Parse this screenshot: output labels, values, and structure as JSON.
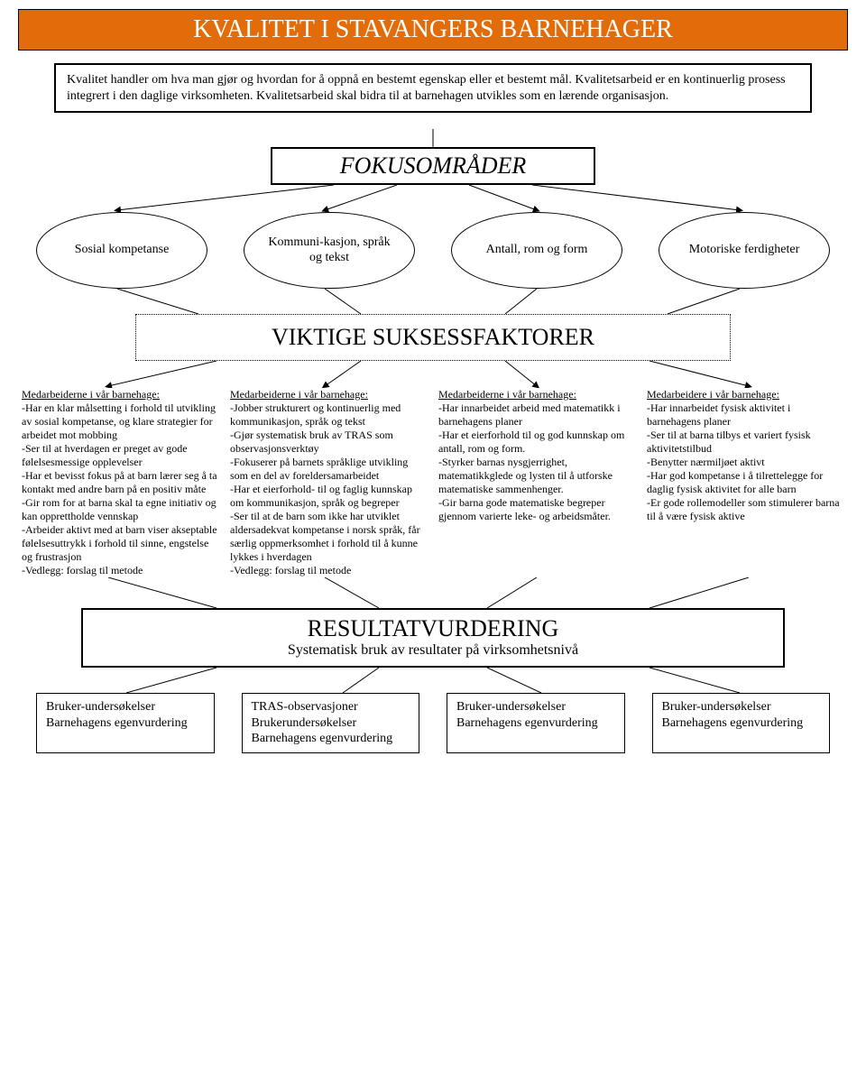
{
  "title": "KVALITET I STAVANGERS BARNEHAGER",
  "intro": "Kvalitet handler om hva man gjør og hvordan for å oppnå en bestemt egenskap eller et bestemt mål. Kvalitetsarbeid er en kontinuerlig prosess integrert i den daglige virksomheten. Kvalitetsarbeid skal bidra til at barnehagen utvikles som en lærende organisasjon.",
  "fokus_title": "FOKUSOMRÅDER",
  "ellipses": [
    "Sosial kompetanse",
    "Kommuni-kasjon, språk og tekst",
    "Antall, rom og form",
    "Motoriske ferdigheter"
  ],
  "viktige_title": "VIKTIGE SUKSESSFAKTORER",
  "columns": [
    {
      "head": "Medarbeiderne i vår barnehage:",
      "body": "-Har en klar målsetting i forhold til utvikling av sosial kompetanse, og klare strategier for arbeidet mot mobbing\n-Ser til at hverdagen er preget av gode følelsesmessige opplevelser\n-Har et bevisst fokus på at barn lærer seg å ta kontakt med andre barn på en positiv måte\n-Gir rom for at barna skal ta egne initiativ og kan opprettholde vennskap\n-Arbeider aktivt med at barn viser akseptable følelsesuttrykk i forhold til sinne, engstelse og frustrasjon\n-Vedlegg: forslag til metode"
    },
    {
      "head": "Medarbeiderne i vår barnehage:",
      "body": "-Jobber strukturert og kontinuerlig med kommunikasjon, språk og tekst\n-Gjør systematisk bruk av TRAS som observasjonsverktøy\n-Fokuserer på barnets språklige utvikling som en del av foreldersamarbeidet\n-Har et eierforhold- til og faglig kunnskap om kommunikasjon, språk og begreper\n-Ser til at de barn som ikke har utviklet aldersadekvat kompetanse i norsk språk, får særlig oppmerksomhet i forhold til å kunne lykkes i hverdagen\n-Vedlegg: forslag til metode"
    },
    {
      "head": "Medarbeiderne i vår barnehage:",
      "body": "-Har innarbeidet arbeid med matematikk i barnehagens planer\n-Har et eierforhold til og god kunnskap om antall, rom og form.\n-Styrker barnas nysgjerrighet, matematikkglede og lysten til å utforske matematiske sammenhenger.\n-Gir barna gode matematiske begreper gjennom varierte leke- og arbeidsmåter."
    },
    {
      "head": "Medarbeidere i vår barnehage:",
      "body": "-Har innarbeidet fysisk aktivitet i barnehagens planer\n-Ser til at barna tilbys et variert fysisk aktivitetstilbud\n-Benytter nærmiljøet aktivt\n-Har god kompetanse i å tilrettelegge for daglig fysisk aktivitet for alle barn\n-Er gode rollemodeller som stimulerer barna til å være fysisk aktive"
    }
  ],
  "resultat": {
    "big": "RESULTATVURDERING",
    "sub": "Systematisk bruk av resultater på virksomhetsnivå"
  },
  "bottom": [
    "Bruker-undersøkelser Barnehagens egenvurdering",
    "TRAS-observasjoner Brukerundersøkelser Barnehagens egenvurdering",
    "Bruker-undersøkelser Barnehagens egenvurdering",
    "Bruker-undersøkelser Barnehagens egenvurdering"
  ],
  "colors": {
    "banner_bg": "#e26b0a",
    "banner_fg": "#ffffff",
    "line": "#000000"
  }
}
